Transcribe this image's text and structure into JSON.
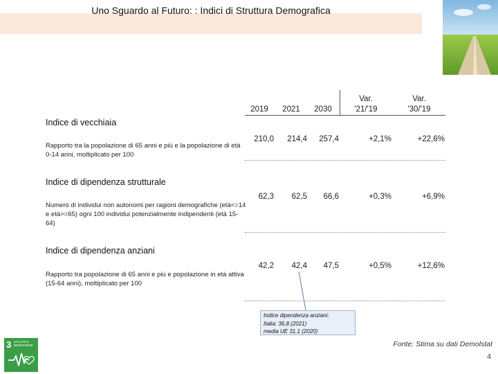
{
  "header": {
    "title": "Uno Sguardo al Futuro: : Indici di Struttura Demografica"
  },
  "table": {
    "columns": [
      "2019",
      "2021",
      "2030",
      "Var. '21/'19",
      "Var. '30/'19"
    ],
    "column_lines": [
      [
        "2019"
      ],
      [
        "2021"
      ],
      [
        "2030"
      ],
      [
        "Var.",
        "'21/'19"
      ],
      [
        "Var.",
        "'30/'19"
      ]
    ],
    "rows": [
      {
        "title": "Indice di vecchiaia",
        "description": "Rapporto tra la popolazione di 65 anni e più e la popolazione di età 0-14 anni, moltiplicato per 100",
        "values": [
          "210,0",
          "214,4",
          "257,4",
          "+2,1%",
          "+22,6%"
        ]
      },
      {
        "title": "Indice di dipendenza strutturale",
        "description": "Numero di individui non autonomi per ragioni demografiche (età<=14 e età>=65) ogni 100 individui potenzialmente indipendenti (età 15-64)",
        "values": [
          "62,3",
          "62,5",
          "66,6",
          "+0,3%",
          "+6,9%"
        ]
      },
      {
        "title": "Indice di dipendenza anziani",
        "description": "Rapporto tra popolazione di 65 anni e più e popolazione in età attiva (15-64 anni), moltiplicato per 100",
        "values": [
          "42,2",
          "42,4",
          "47,5",
          "+0,5%",
          "+12,6%"
        ]
      }
    ]
  },
  "callout": {
    "line1": "Indice dipendenza anziani:",
    "line2": "Italia: 36,8 (2021)",
    "line3": "media UE 31,1 (2020)"
  },
  "footer": {
    "source": "Fonte: Stima su dati Demolstat",
    "page_number": "4"
  },
  "sdg_badge": {
    "number": "3",
    "label": "SALUTE E BENESSERE",
    "color": "#3a9e47"
  },
  "colors": {
    "title_band": "#fbe8dc",
    "callout_bg": "#e9eff7"
  }
}
